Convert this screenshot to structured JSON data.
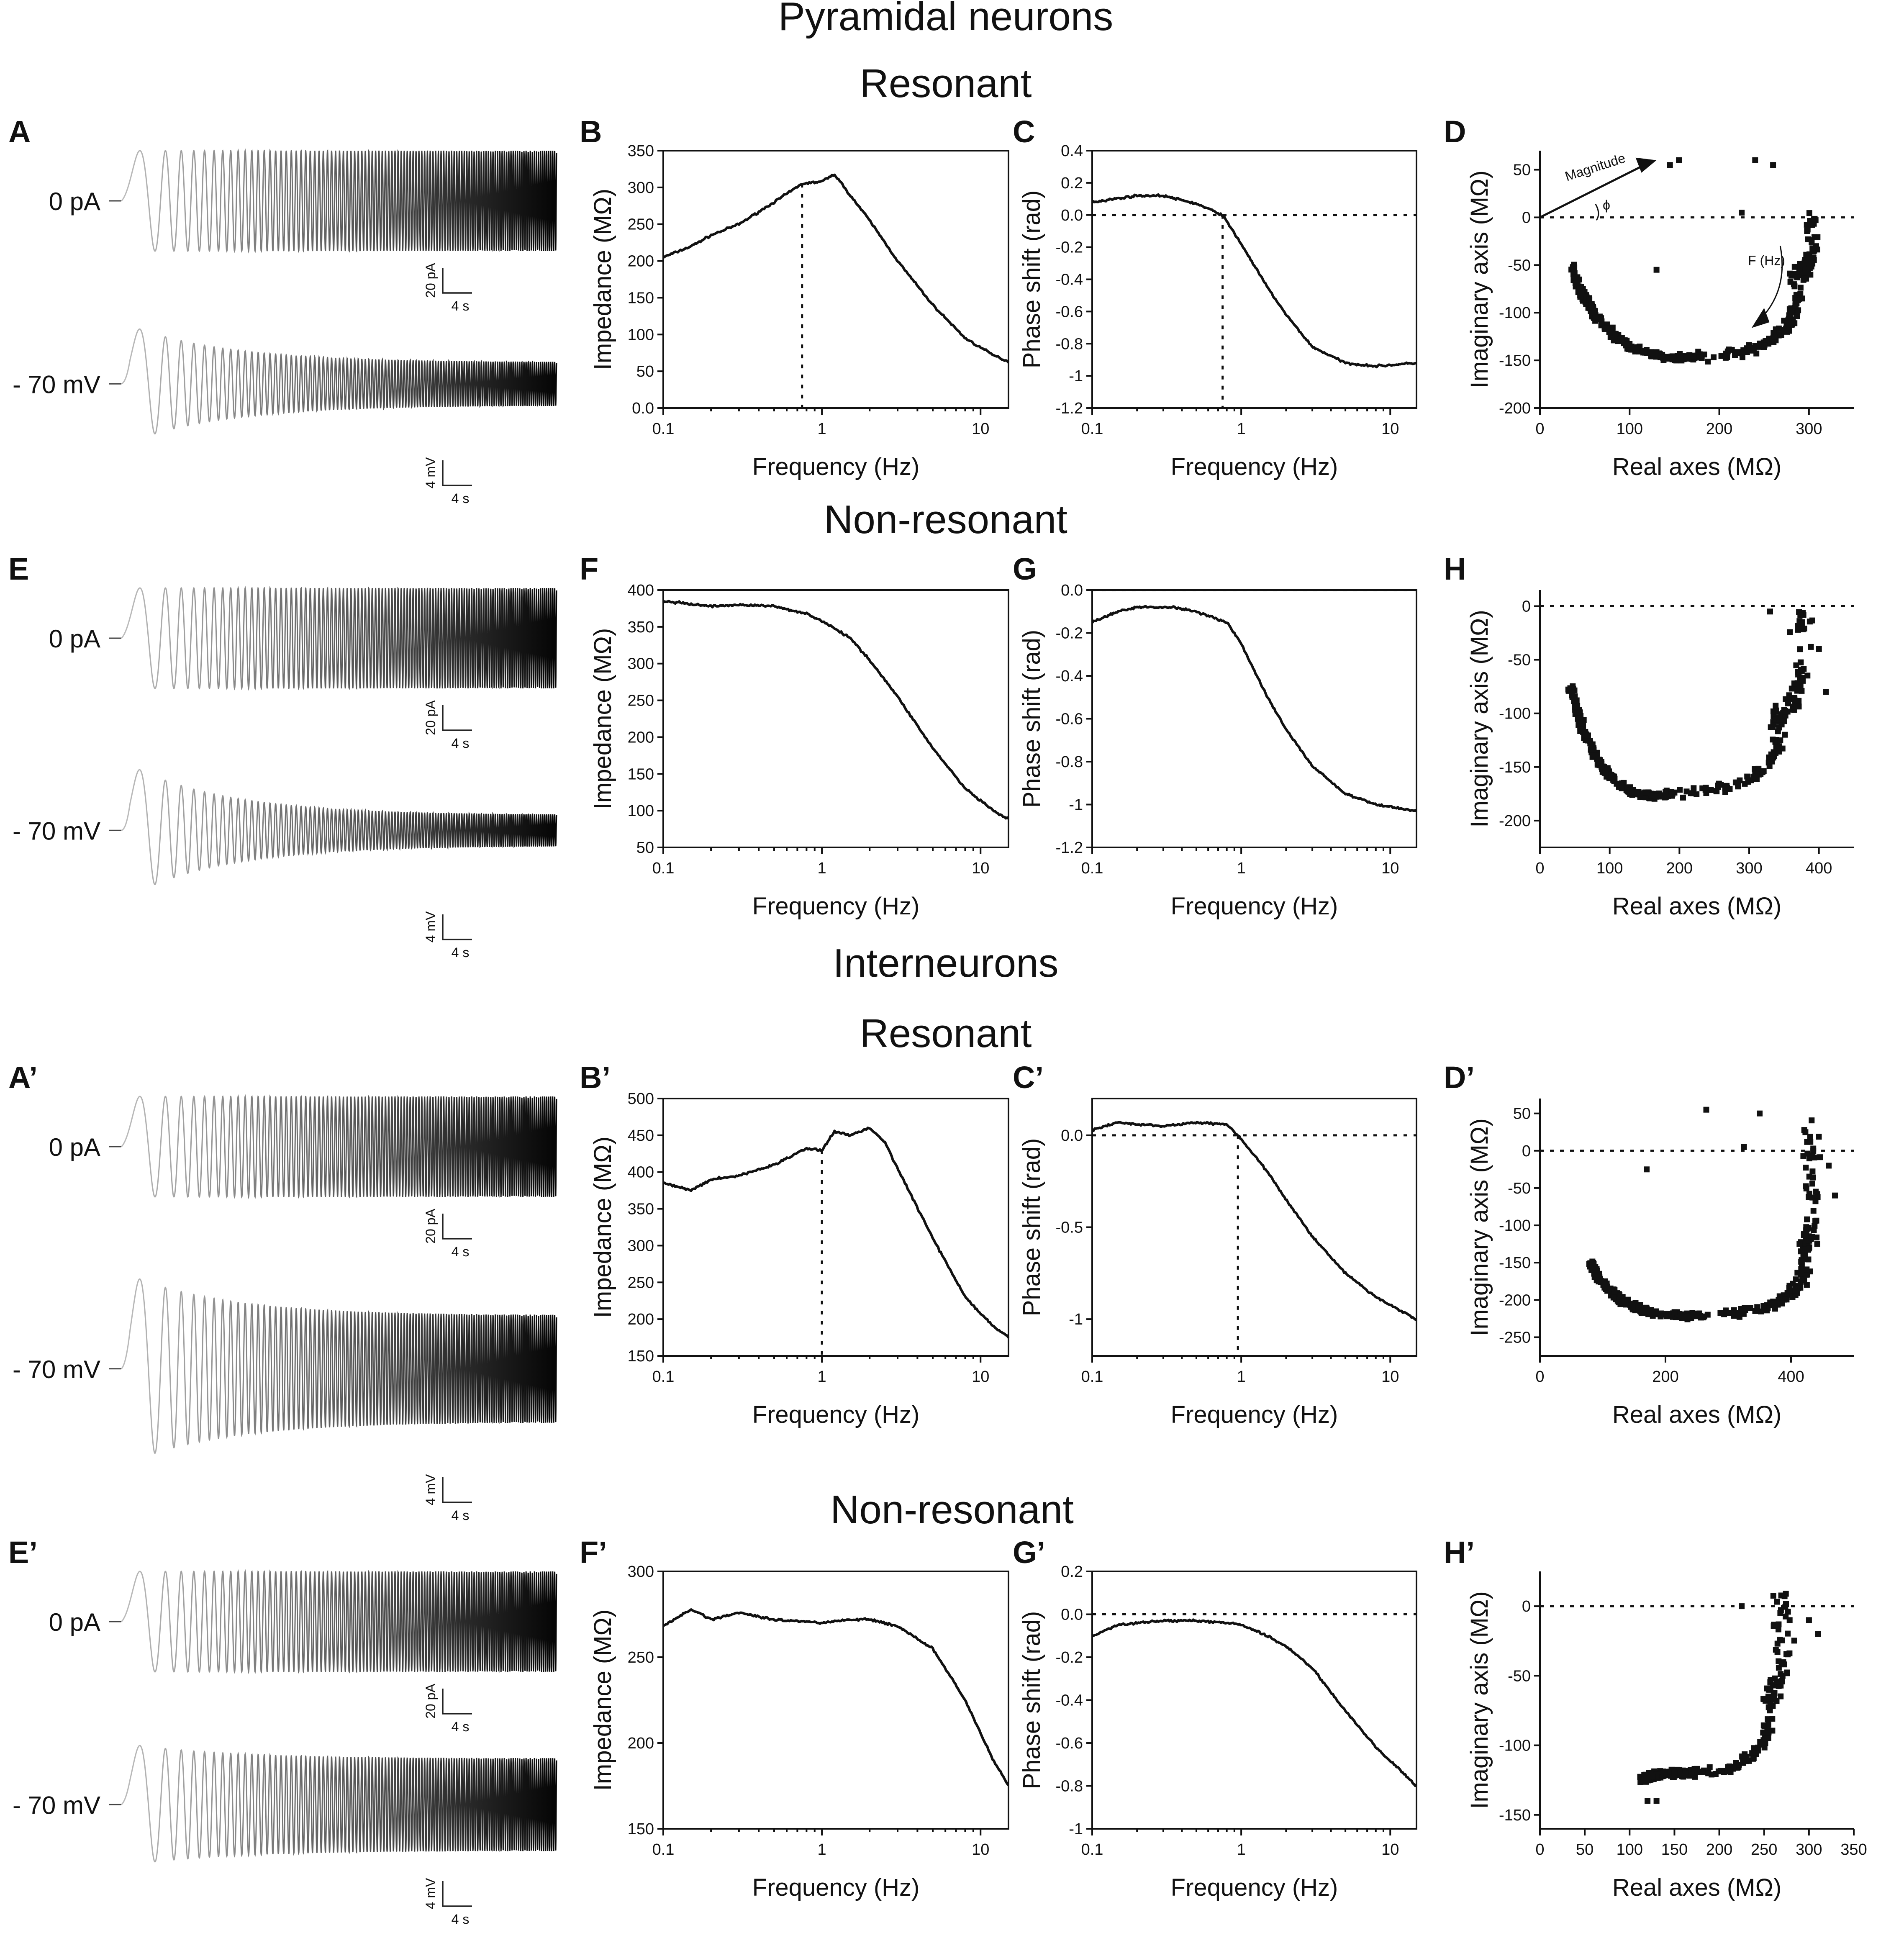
{
  "headings": {
    "pyramidal": "Pyramidal neurons",
    "interneurons": "Interneurons",
    "resonant": "Resonant",
    "nonresonant": "Non-resonant"
  },
  "trace_labels": {
    "current": "0 pA",
    "voltage": "- 70 mV"
  },
  "scalebar_labels": {
    "current": "20 pA",
    "voltage": "4 mV",
    "time": "4 s"
  },
  "annotations": {
    "magnitude": "Magnitude",
    "phi": "ϕ",
    "fhz": "F (Hz)"
  },
  "chart_data": [
    {
      "id": "A",
      "type": "line",
      "title": "",
      "trace": "chirp current and voltage response",
      "variant": "pyr-res"
    },
    {
      "id": "B",
      "type": "line",
      "xlabel": "Frequency (Hz)",
      "ylabel": "Impedance (MΩ)",
      "xscale": "log",
      "xlim": [
        0.1,
        15
      ],
      "ylim": [
        0,
        350
      ],
      "yticks": [
        0,
        50,
        100,
        150,
        200,
        250,
        300,
        350
      ],
      "resonance_hz": 0.75,
      "x": [
        0.1,
        0.15,
        0.2,
        0.3,
        0.5,
        0.75,
        1.0,
        1.2,
        1.5,
        2,
        3,
        5,
        8,
        12,
        15
      ],
      "y": [
        205,
        220,
        235,
        250,
        280,
        305,
        308,
        318,
        290,
        255,
        200,
        140,
        95,
        72,
        63
      ]
    },
    {
      "id": "C",
      "type": "line",
      "xlabel": "Frequency (Hz)",
      "ylabel": "Phase shift (rad)",
      "xscale": "log",
      "xlim": [
        0.1,
        15
      ],
      "ylim": [
        -1.2,
        0.4
      ],
      "yticks": [
        -1.2,
        -1.0,
        -0.8,
        -0.6,
        -0.4,
        -0.2,
        0.0,
        0.2,
        0.4
      ],
      "zero_line": true,
      "resonance_hz": 0.75,
      "x": [
        0.1,
        0.2,
        0.3,
        0.5,
        0.75,
        1.0,
        1.5,
        2,
        3,
        5,
        8,
        15
      ],
      "y": [
        0.08,
        0.12,
        0.12,
        0.07,
        0.0,
        -0.18,
        -0.45,
        -0.62,
        -0.82,
        -0.92,
        -0.94,
        -0.92
      ]
    },
    {
      "id": "D",
      "type": "scatter",
      "xlabel": "Real axes (MΩ)",
      "ylabel": "Imaginary axis (MΩ)",
      "xlim": [
        0,
        350
      ],
      "ylim": [
        -200,
        70
      ],
      "xticks": [
        0,
        100,
        200,
        300
      ],
      "yticks": [
        -200,
        -150,
        -100,
        -50,
        0,
        50
      ],
      "zero_line": true,
      "arc": {
        "start": [
          35,
          -50
        ],
        "min": [
          180,
          -145
        ],
        "turn": [
          285,
          -60
        ],
        "end": [
          300,
          0
        ]
      },
      "outliers": [
        [
          130,
          -55
        ],
        [
          145,
          55
        ],
        [
          155,
          60
        ],
        [
          240,
          60
        ],
        [
          260,
          55
        ],
        [
          225,
          5
        ]
      ]
    },
    {
      "id": "E",
      "type": "line",
      "title": "",
      "trace": "chirp current and voltage response",
      "variant": "pyr-non"
    },
    {
      "id": "F",
      "type": "line",
      "xlabel": "Frequency (Hz)",
      "ylabel": "Impedance (MΩ)",
      "xscale": "log",
      "xlim": [
        0.1,
        15
      ],
      "ylim": [
        50,
        400
      ],
      "yticks": [
        50,
        100,
        150,
        200,
        250,
        300,
        350,
        400
      ],
      "x": [
        0.1,
        0.2,
        0.3,
        0.5,
        0.8,
        1.0,
        1.5,
        2,
        3,
        5,
        8,
        12,
        15
      ],
      "y": [
        385,
        378,
        380,
        378,
        368,
        358,
        335,
        305,
        255,
        185,
        130,
        100,
        88
      ]
    },
    {
      "id": "G",
      "type": "line",
      "xlabel": "Frequency (Hz)",
      "ylabel": "Phase shift (rad)",
      "xscale": "log",
      "xlim": [
        0.1,
        15
      ],
      "ylim": [
        -1.2,
        0.0
      ],
      "yticks": [
        -1.2,
        -1.0,
        -0.8,
        -0.6,
        -0.4,
        -0.2,
        0.0
      ],
      "zero_line": true,
      "x": [
        0.1,
        0.15,
        0.2,
        0.35,
        0.5,
        0.8,
        1.0,
        1.5,
        2,
        3,
        5,
        8,
        15
      ],
      "y": [
        -0.15,
        -0.1,
        -0.08,
        -0.08,
        -0.1,
        -0.15,
        -0.25,
        -0.5,
        -0.65,
        -0.82,
        -0.95,
        -1.0,
        -1.03
      ]
    },
    {
      "id": "H",
      "type": "scatter",
      "xlabel": "Real axes (MΩ)",
      "ylabel": "Imaginary axis (MΩ)",
      "xlim": [
        0,
        450
      ],
      "ylim": [
        -225,
        15
      ],
      "xticks": [
        0,
        100,
        200,
        300,
        400
      ],
      "yticks": [
        -200,
        -150,
        -100,
        -50,
        0
      ],
      "zero_line": true,
      "arc": {
        "start": [
          45,
          -75
        ],
        "min": [
          190,
          -175
        ],
        "turn": [
          340,
          -100
        ],
        "end": [
          375,
          0
        ]
      },
      "outliers": [
        [
          330,
          -5
        ],
        [
          400,
          -40
        ],
        [
          410,
          -80
        ]
      ]
    },
    {
      "id": "A’",
      "type": "line",
      "title": "",
      "trace": "chirp current and voltage response",
      "variant": "int-res"
    },
    {
      "id": "B’",
      "type": "line",
      "xlabel": "Frequency (Hz)",
      "ylabel": "Impedance (MΩ)",
      "xscale": "log",
      "xlim": [
        0.1,
        15
      ],
      "ylim": [
        150,
        500
      ],
      "yticks": [
        150,
        200,
        250,
        300,
        350,
        400,
        450,
        500
      ],
      "resonance_hz": 1.0,
      "x": [
        0.1,
        0.15,
        0.2,
        0.3,
        0.5,
        0.8,
        1.0,
        1.2,
        1.5,
        2,
        2.5,
        3,
        5,
        8,
        12,
        15
      ],
      "y": [
        385,
        375,
        390,
        395,
        410,
        432,
        430,
        455,
        450,
        460,
        440,
        405,
        310,
        230,
        190,
        175
      ]
    },
    {
      "id": "C’",
      "type": "line",
      "xlabel": "Frequency (Hz)",
      "ylabel": "Phase shift (rad)",
      "xscale": "log",
      "xlim": [
        0.1,
        15
      ],
      "ylim": [
        -1.2,
        0.2
      ],
      "yticks": [
        -1.0,
        -0.5,
        0.0
      ],
      "zero_line": true,
      "resonance_hz": 0.95,
      "x": [
        0.1,
        0.15,
        0.2,
        0.3,
        0.5,
        0.8,
        0.95,
        1.2,
        1.5,
        2,
        3,
        5,
        8,
        15
      ],
      "y": [
        0.03,
        0.07,
        0.06,
        0.05,
        0.07,
        0.06,
        0.0,
        -0.1,
        -0.2,
        -0.35,
        -0.55,
        -0.75,
        -0.88,
        -1.0
      ]
    },
    {
      "id": "D’",
      "type": "scatter",
      "xlabel": "Real axes (MΩ)",
      "ylabel": "Imaginary axis (MΩ)",
      "xlim": [
        0,
        500
      ],
      "ylim": [
        -275,
        70
      ],
      "xticks": [
        0,
        200,
        400
      ],
      "yticks": [
        -250,
        -200,
        -150,
        -100,
        -50,
        0,
        50
      ],
      "zero_line": true,
      "arc": {
        "start": [
          80,
          -150
        ],
        "min": [
          260,
          -220
        ],
        "turn": [
          420,
          -130
        ],
        "end": [
          430,
          40
        ]
      },
      "outliers": [
        [
          170,
          -25
        ],
        [
          265,
          55
        ],
        [
          325,
          5
        ],
        [
          350,
          50
        ],
        [
          460,
          -20
        ],
        [
          470,
          -60
        ]
      ]
    },
    {
      "id": "E’",
      "type": "line",
      "title": "",
      "trace": "chirp current and voltage response",
      "variant": "int-non"
    },
    {
      "id": "F’",
      "type": "line",
      "xlabel": "Frequency (Hz)",
      "ylabel": "Impedance (MΩ)",
      "xscale": "log",
      "xlim": [
        0.1,
        15
      ],
      "ylim": [
        150,
        300
      ],
      "yticks": [
        150,
        200,
        250,
        300
      ],
      "x": [
        0.1,
        0.15,
        0.2,
        0.3,
        0.5,
        1.0,
        1.5,
        2,
        3,
        5,
        8,
        12,
        15
      ],
      "y": [
        268,
        278,
        272,
        276,
        272,
        270,
        272,
        272,
        268,
        255,
        225,
        190,
        175
      ]
    },
    {
      "id": "G’",
      "type": "line",
      "xlabel": "Frequency (Hz)",
      "ylabel": "Phase shift (rad)",
      "xscale": "log",
      "xlim": [
        0.1,
        15
      ],
      "ylim": [
        -1.0,
        0.2
      ],
      "yticks": [
        -1.0,
        -0.8,
        -0.6,
        -0.4,
        -0.2,
        0.0,
        0.2
      ],
      "zero_line": true,
      "x": [
        0.1,
        0.15,
        0.2,
        0.3,
        0.5,
        0.8,
        1.0,
        1.5,
        2,
        3,
        5,
        8,
        15
      ],
      "y": [
        -0.1,
        -0.05,
        -0.04,
        -0.03,
        -0.03,
        -0.04,
        -0.05,
        -0.1,
        -0.15,
        -0.25,
        -0.45,
        -0.62,
        -0.8
      ]
    },
    {
      "id": "H’",
      "type": "scatter",
      "xlabel": "Real axes (MΩ)",
      "ylabel": "Imaginary axis (MΩ)",
      "xlim": [
        0,
        350
      ],
      "ylim": [
        -160,
        25
      ],
      "xticks": [
        0,
        50,
        100,
        150,
        200,
        250,
        300,
        350
      ],
      "yticks": [
        -150,
        -100,
        -50,
        0
      ],
      "zero_line": true,
      "arc": {
        "start": [
          115,
          -125
        ],
        "min": [
          170,
          -120
        ],
        "turn": [
          255,
          -60
        ],
        "end": [
          270,
          10
        ]
      },
      "outliers": [
        [
          225,
          0
        ],
        [
          300,
          -10
        ],
        [
          310,
          -20
        ],
        [
          120,
          -140
        ],
        [
          130,
          -140
        ]
      ]
    }
  ]
}
